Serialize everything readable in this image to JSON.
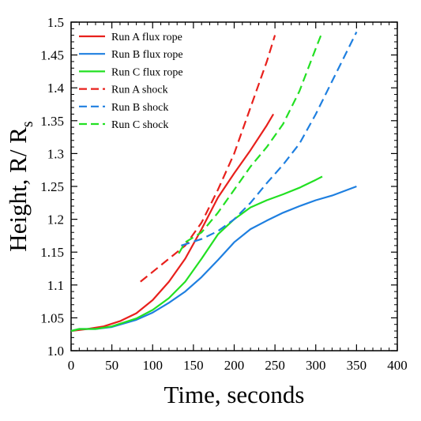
{
  "chart_data": {
    "type": "line",
    "title": "",
    "xlabel": "Time, seconds",
    "ylabel": "Height, R/ R",
    "ylabel_subscript": "s",
    "xlim": [
      0,
      400
    ],
    "ylim": [
      1.0,
      1.5
    ],
    "xticks": [
      "0",
      "50",
      "100",
      "150",
      "200",
      "250",
      "300",
      "350",
      "400"
    ],
    "yticks": [
      "1.0",
      "1.05",
      "1.1",
      "1.15",
      "1.2",
      "1.25",
      "1.3",
      "1.35",
      "1.4",
      "1.45",
      "1.5"
    ],
    "grid": false,
    "legend_position": "top-left",
    "series": [
      {
        "name": "Run A flux rope",
        "color": "#e8201c",
        "style": "solid",
        "x": [
          0,
          20,
          40,
          60,
          80,
          100,
          120,
          140,
          160,
          180,
          200,
          220,
          240,
          248
        ],
        "y": [
          1.03,
          1.033,
          1.037,
          1.045,
          1.057,
          1.077,
          1.105,
          1.14,
          1.185,
          1.233,
          1.27,
          1.305,
          1.343,
          1.36
        ]
      },
      {
        "name": "Run B flux rope",
        "color": "#1e7fe0",
        "style": "solid",
        "x": [
          0,
          10,
          30,
          50,
          80,
          100,
          120,
          140,
          160,
          180,
          200,
          220,
          240,
          260,
          280,
          300,
          320,
          350
        ],
        "y": [
          1.03,
          1.033,
          1.033,
          1.036,
          1.047,
          1.058,
          1.073,
          1.09,
          1.112,
          1.138,
          1.165,
          1.185,
          1.198,
          1.21,
          1.22,
          1.229,
          1.236,
          1.25
        ]
      },
      {
        "name": "Run C flux rope",
        "color": "#22e022",
        "style": "solid",
        "x": [
          0,
          10,
          30,
          50,
          80,
          100,
          120,
          140,
          160,
          180,
          200,
          220,
          240,
          260,
          280,
          300,
          308
        ],
        "y": [
          1.03,
          1.033,
          1.033,
          1.037,
          1.049,
          1.062,
          1.08,
          1.105,
          1.14,
          1.177,
          1.2,
          1.218,
          1.229,
          1.238,
          1.248,
          1.26,
          1.265
        ]
      },
      {
        "name": "Run A shock",
        "color": "#e8201c",
        "style": "dashed",
        "x": [
          85,
          100,
          120,
          140,
          160,
          180,
          200,
          220,
          240,
          250
        ],
        "y": [
          1.105,
          1.12,
          1.14,
          1.16,
          1.195,
          1.245,
          1.3,
          1.37,
          1.44,
          1.48
        ]
      },
      {
        "name": "Run B shock",
        "color": "#1e7fe0",
        "style": "dashed",
        "x": [
          135,
          160,
          180,
          200,
          220,
          240,
          260,
          280,
          300,
          320,
          340,
          350
        ],
        "y": [
          1.16,
          1.17,
          1.182,
          1.2,
          1.225,
          1.255,
          1.283,
          1.315,
          1.36,
          1.41,
          1.46,
          1.485
        ]
      },
      {
        "name": "Run C shock",
        "color": "#22e022",
        "style": "dashed",
        "x": [
          132,
          140,
          160,
          180,
          200,
          220,
          240,
          260,
          280,
          300,
          308
        ],
        "y": [
          1.148,
          1.165,
          1.18,
          1.21,
          1.245,
          1.28,
          1.31,
          1.345,
          1.395,
          1.46,
          1.485
        ]
      }
    ]
  }
}
